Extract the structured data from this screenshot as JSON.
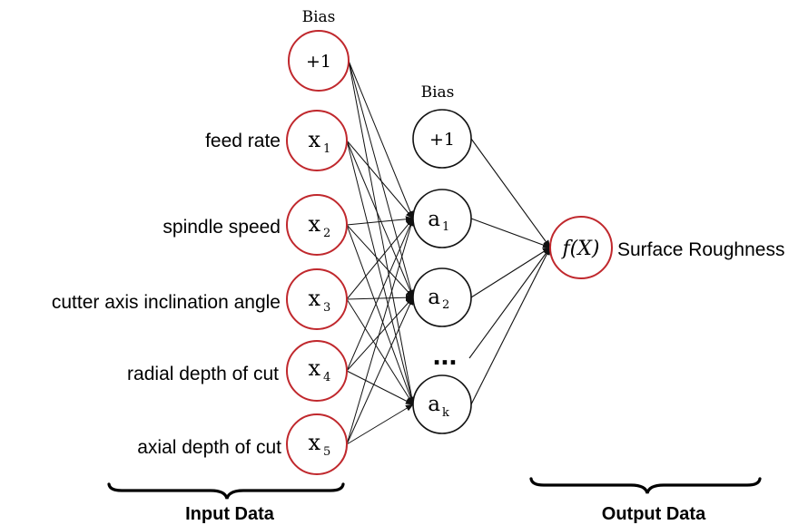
{
  "diagram": {
    "input_bias_caption": "Bias",
    "hidden_bias_caption": "Bias",
    "input_bias_node": "+1",
    "hidden_bias_node": "+1",
    "inputs": [
      {
        "label": "feed rate",
        "node": "x",
        "sub": "1"
      },
      {
        "label": "spindle speed",
        "node": "x",
        "sub": "2"
      },
      {
        "label": "cutter axis inclination angle",
        "node": "x",
        "sub": "3"
      },
      {
        "label": "radial depth of cut",
        "node": "x",
        "sub": "4"
      },
      {
        "label": "axial depth of cut",
        "node": "x",
        "sub": "5"
      }
    ],
    "hidden": [
      {
        "node": "a",
        "sub": "1"
      },
      {
        "node": "a",
        "sub": "2"
      },
      {
        "node": "a",
        "sub": "k"
      }
    ],
    "ellipsis": "...",
    "output_node": "f(X)",
    "output_label": "Surface Roughness",
    "input_group_label": "Input Data",
    "output_group_label": "Output Data"
  }
}
